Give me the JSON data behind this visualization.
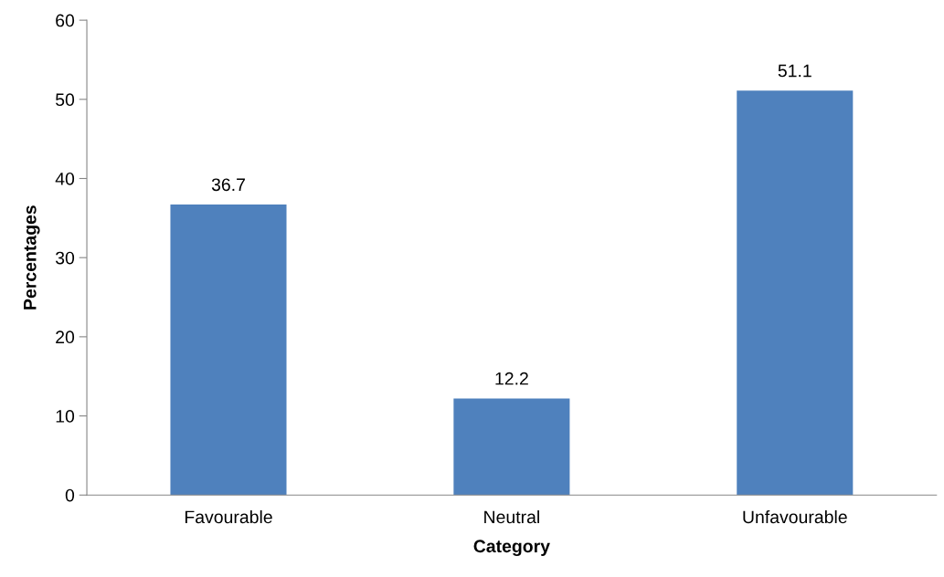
{
  "chart_data": {
    "type": "bar",
    "xlabel": "Category",
    "ylabel": "Percentages",
    "categories": [
      "Favourable",
      "Neutral",
      "Unfavourable"
    ],
    "values": [
      36.7,
      12.2,
      51.1
    ],
    "color": "#4f81bd",
    "ylim": [
      0,
      60
    ],
    "yticks": [
      0,
      10,
      20,
      30,
      40,
      50,
      60
    ],
    "grid": false,
    "data_labels": true
  }
}
